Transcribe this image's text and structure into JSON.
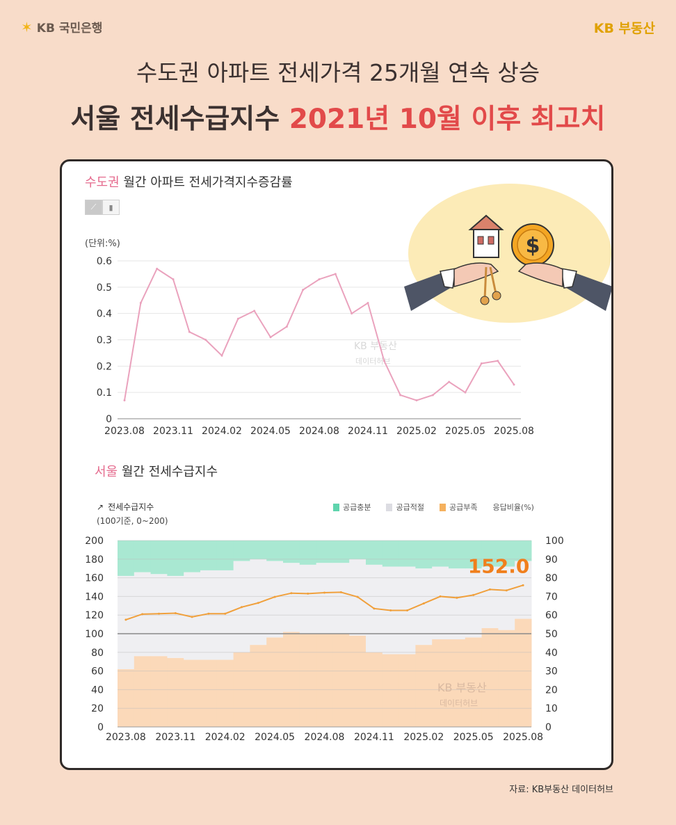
{
  "header": {
    "brand_left": "KB 국민은행",
    "brand_right": "KB 부동산",
    "headline_1": "수도권 아파트 전세가격 25개월 연속 상승",
    "headline_2_main": "서울 전세수급지수 ",
    "headline_2_accent": "2021년 10월 이후 최고치"
  },
  "chart1_ui": {
    "title_highlight": "수도권",
    "title_rest": " 월간 아파트 전세가격지수증감률",
    "unit": "(단위:%)",
    "watermark_1": "KB 부동산",
    "watermark_2": "데이터허브"
  },
  "chart2_ui": {
    "title_highlight": "서울",
    "title_rest": " 월간 전세수급지수",
    "legend_line": "전세수급지수",
    "legend_sub": "(100기준, 0~200)",
    "legend_oversupply": "공급충분",
    "legend_adequate": "공급적절",
    "legend_shortage": "공급부족",
    "legend_ratio": "응답비율(%)",
    "last_value_label": "152.0",
    "watermark_1": "KB 부동산",
    "watermark_2": "데이터허브"
  },
  "footer": {
    "source": "자료: KB부동산 데이터허브"
  },
  "colors": {
    "background": "#f8dcc9",
    "line1": "#eaa2bd",
    "line2": "#f0a03c",
    "shortage": "#fbd9b9",
    "adequate": "#efeff2",
    "oversupply": "#a9e8d2",
    "accent_red": "#e24a4a",
    "label_orange": "#f07f1c"
  },
  "chart_data": [
    {
      "type": "line",
      "x_ticks": [
        "2023.08",
        "2023.11",
        "2024.02",
        "2024.05",
        "2024.08",
        "2024.11",
        "2025.02",
        "2025.05",
        "2025.08"
      ],
      "x": [
        "2023.08",
        "2023.09",
        "2023.10",
        "2023.11",
        "2023.12",
        "2024.01",
        "2024.02",
        "2024.03",
        "2024.04",
        "2024.05",
        "2024.06",
        "2024.07",
        "2024.08",
        "2024.09",
        "2024.10",
        "2024.11",
        "2024.12",
        "2025.01",
        "2025.02",
        "2025.03",
        "2025.04",
        "2025.05",
        "2025.06",
        "2025.07",
        "2025.08"
      ],
      "values": [
        0.07,
        0.44,
        0.57,
        0.53,
        0.33,
        0.3,
        0.24,
        0.38,
        0.41,
        0.31,
        0.35,
        0.49,
        0.53,
        0.55,
        0.4,
        0.44,
        0.22,
        0.09,
        0.07,
        0.09,
        0.14,
        0.1,
        0.21,
        0.22,
        0.13
      ],
      "ylim": [
        0,
        0.6
      ],
      "y_ticks": [
        0,
        0.1,
        0.2,
        0.3,
        0.4,
        0.5,
        0.6
      ],
      "grid": true
    },
    {
      "type": "area",
      "x_ticks": [
        "2023.08",
        "2023.11",
        "2024.02",
        "2024.05",
        "2024.08",
        "2024.11",
        "2025.02",
        "2025.05",
        "2025.08"
      ],
      "x": [
        "2023.08",
        "2023.09",
        "2023.10",
        "2023.11",
        "2023.12",
        "2024.01",
        "2024.02",
        "2024.03",
        "2024.04",
        "2024.05",
        "2024.06",
        "2024.07",
        "2024.08",
        "2024.09",
        "2024.10",
        "2024.11",
        "2024.12",
        "2025.01",
        "2025.02",
        "2025.03",
        "2025.04",
        "2025.05",
        "2025.06",
        "2025.07",
        "2025.08"
      ],
      "index_values": [
        115.0,
        121.0,
        121.5,
        122.0,
        118.0,
        121.5,
        121.5,
        128.5,
        133.0,
        139.5,
        143.5,
        143.0,
        144.0,
        144.5,
        139.5,
        127.0,
        125.0,
        125.0,
        132.5,
        140.0,
        138.5,
        141.5,
        147.5,
        146.5,
        152.0
      ],
      "left_ylim": [
        0,
        200
      ],
      "left_ticks": [
        0,
        20,
        40,
        60,
        80,
        100,
        120,
        140,
        160,
        180,
        200
      ],
      "shortage_pct": [
        31,
        38,
        38,
        37,
        36,
        36,
        36,
        40,
        44,
        48,
        51,
        50,
        50,
        50,
        49,
        40,
        39,
        39,
        44,
        47,
        47,
        48,
        53,
        52,
        58
      ],
      "adequate_pct": [
        50,
        45,
        44,
        44,
        47,
        48,
        48,
        49,
        46,
        41,
        37,
        37,
        38,
        38,
        41,
        47,
        47,
        47,
        41,
        39,
        38,
        37,
        33,
        34,
        31
      ],
      "oversupply_pct": [
        19,
        17,
        18,
        19,
        17,
        16,
        16,
        11,
        10,
        11,
        12,
        13,
        12,
        12,
        10,
        13,
        14,
        14,
        15,
        14,
        15,
        15,
        14,
        14,
        11
      ],
      "right_ylim": [
        0,
        100
      ],
      "right_ticks": [
        0,
        10,
        20,
        30,
        40,
        50,
        60,
        70,
        80,
        90,
        100
      ],
      "reference_line": 100,
      "series": [
        {
          "name": "전세수급지수"
        },
        {
          "name": "공급충분"
        },
        {
          "name": "공급적절"
        },
        {
          "name": "공급부족"
        }
      ]
    }
  ]
}
